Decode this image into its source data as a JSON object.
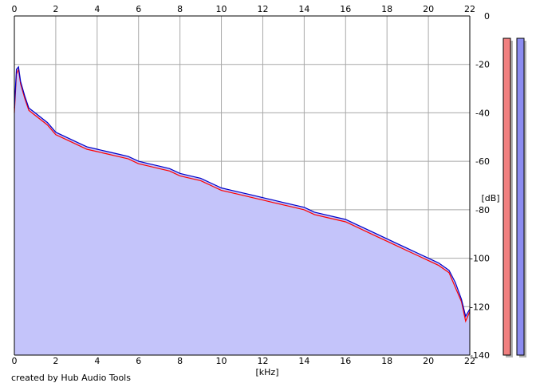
{
  "footer": {
    "credit": "created by Hub Audio Tools"
  },
  "colors": {
    "background": "#ffffff",
    "plot_fill": "#c4c4fa",
    "grid": "#a8a8a8",
    "axis": "#000000",
    "left_channel": "#ff0000",
    "right_channel": "#0000c8",
    "meter_left": "#f08080",
    "meter_right": "#8c8cf0",
    "meter_shadow": "#b4b4b4"
  },
  "chart_data": {
    "type": "line",
    "title": "",
    "xlabel": "[kHz]",
    "ylabel": "[dB]",
    "xlim": [
      0,
      22
    ],
    "ylim": [
      -140,
      0
    ],
    "xticks": [
      0,
      2,
      4,
      6,
      8,
      10,
      12,
      14,
      16,
      18,
      20,
      22
    ],
    "yticks": [
      0,
      -20,
      -40,
      -60,
      -80,
      -100,
      -120,
      -140
    ],
    "grid": true,
    "filled_area": true,
    "series": [
      {
        "color": "#ff0000",
        "x": [
          0,
          0.1,
          0.2,
          0.3,
          0.5,
          0.7,
          1.0,
          1.3,
          1.6,
          2.0,
          2.5,
          3.0,
          3.5,
          4.0,
          4.5,
          5.0,
          5.5,
          6.0,
          6.5,
          7.0,
          7.5,
          8.0,
          8.5,
          9.0,
          9.5,
          10.0,
          10.5,
          11.0,
          11.5,
          12.0,
          12.5,
          13.0,
          13.5,
          14.0,
          14.5,
          15.0,
          15.5,
          16.0,
          16.5,
          17.0,
          17.5,
          18.0,
          18.5,
          19.0,
          19.5,
          20.0,
          20.5,
          21.0,
          21.3,
          21.6,
          21.8,
          22.0
        ],
        "y": [
          -40,
          -24,
          -22,
          -28,
          -34,
          -39,
          -41,
          -43,
          -45,
          -49,
          -51,
          -53,
          -55,
          -56,
          -57,
          -58,
          -59,
          -61,
          -62,
          -63,
          -64,
          -66,
          -67,
          -68,
          -70,
          -72,
          -73,
          -74,
          -75,
          -76,
          -77,
          -78,
          -79,
          -80,
          -82,
          -83,
          -84,
          -85,
          -87,
          -89,
          -91,
          -93,
          -95,
          -97,
          -99,
          -101,
          -103,
          -106,
          -112,
          -118,
          -126,
          -122
        ]
      },
      {
        "color": "#0000c8",
        "x": [
          0,
          0.1,
          0.2,
          0.3,
          0.5,
          0.7,
          1.0,
          1.3,
          1.6,
          2.0,
          2.5,
          3.0,
          3.5,
          4.0,
          4.5,
          5.0,
          5.5,
          6.0,
          6.5,
          7.0,
          7.5,
          8.0,
          8.5,
          9.0,
          9.5,
          10.0,
          10.5,
          11.0,
          11.5,
          12.0,
          12.5,
          13.0,
          13.5,
          14.0,
          14.5,
          15.0,
          15.5,
          16.0,
          16.5,
          17.0,
          17.5,
          18.0,
          18.5,
          19.0,
          19.5,
          20.0,
          20.5,
          21.0,
          21.3,
          21.6,
          21.8,
          22.0
        ],
        "y": [
          -38,
          -22,
          -21,
          -27,
          -33,
          -38,
          -40,
          -42,
          -44,
          -48,
          -50,
          -52,
          -54,
          -55,
          -56,
          -57,
          -58,
          -60,
          -61,
          -62,
          -63,
          -65,
          -66,
          -67,
          -69,
          -71,
          -72,
          -73,
          -74,
          -75,
          -76,
          -77,
          -78,
          -79,
          -81,
          -82,
          -83,
          -84,
          -86,
          -88,
          -90,
          -92,
          -94,
          -96,
          -98,
          -100,
          -102,
          -105,
          -110,
          -117,
          -124,
          -121
        ]
      }
    ]
  }
}
